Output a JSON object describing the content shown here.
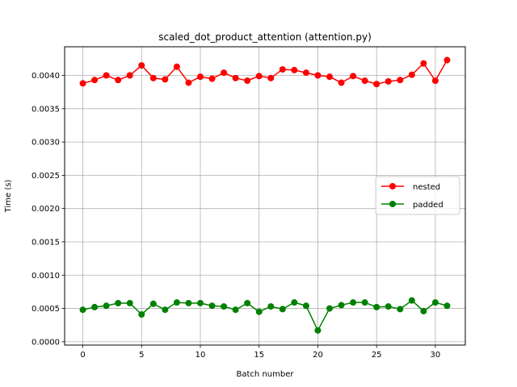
{
  "chart_data": {
    "type": "line",
    "title": "scaled_dot_product_attention (attention.py)",
    "xlabel": "Batch number",
    "ylabel": "Time (s)",
    "xlim": [
      -1.55,
      32.55
    ],
    "ylim": [
      -5e-05,
      0.00443
    ],
    "xticks": [
      0,
      5,
      10,
      15,
      20,
      25,
      30
    ],
    "xtick_labels": [
      "0",
      "5",
      "10",
      "15",
      "20",
      "25",
      "30"
    ],
    "yticks": [
      0.0,
      0.0005,
      0.001,
      0.0015,
      0.002,
      0.0025,
      0.003,
      0.0035,
      0.004
    ],
    "ytick_labels": [
      "0.0000",
      "0.0005",
      "0.0010",
      "0.0015",
      "0.0020",
      "0.0025",
      "0.0030",
      "0.0035",
      "0.0040"
    ],
    "grid": true,
    "legend_position": "center-right",
    "x": [
      0,
      1,
      2,
      3,
      4,
      5,
      6,
      7,
      8,
      9,
      10,
      11,
      12,
      13,
      14,
      15,
      16,
      17,
      18,
      19,
      20,
      21,
      22,
      23,
      24,
      25,
      26,
      27,
      28,
      29,
      30,
      31
    ],
    "series": [
      {
        "name": "nested",
        "color": "#ff0000",
        "values": [
          0.00388,
          0.00393,
          0.004,
          0.00393,
          0.004,
          0.00415,
          0.00396,
          0.00394,
          0.00413,
          0.00389,
          0.00398,
          0.00395,
          0.00404,
          0.00396,
          0.00392,
          0.00399,
          0.00396,
          0.00409,
          0.00408,
          0.00404,
          0.004,
          0.00398,
          0.00389,
          0.00399,
          0.00392,
          0.00387,
          0.00391,
          0.00393,
          0.00401,
          0.00418,
          0.00392,
          0.00423
        ]
      },
      {
        "name": "padded",
        "color": "#008000",
        "values": [
          0.00048,
          0.00052,
          0.00054,
          0.00058,
          0.00058,
          0.00041,
          0.00057,
          0.00048,
          0.00059,
          0.00058,
          0.00058,
          0.00054,
          0.00053,
          0.00048,
          0.00058,
          0.00045,
          0.00053,
          0.00049,
          0.00059,
          0.00054,
          0.00017,
          0.0005,
          0.00055,
          0.00059,
          0.00059,
          0.00052,
          0.00053,
          0.00049,
          0.00062,
          0.00046,
          0.00059,
          0.00054
        ]
      }
    ]
  }
}
